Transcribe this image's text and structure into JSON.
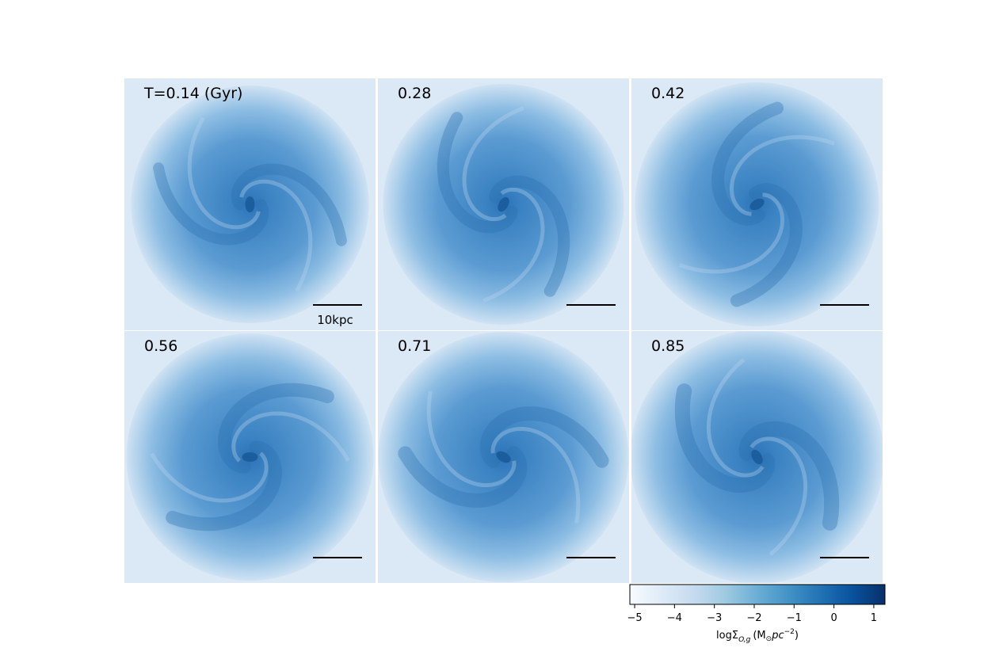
{
  "panels": [
    {
      "label": "T=0.14 (Gyr)"
    },
    {
      "label": "0.28"
    },
    {
      "label": "0.42"
    },
    {
      "label": "0.56"
    },
    {
      "label": "0.71"
    },
    {
      "label": "0.85"
    }
  ],
  "scale_bar_label": "10kpc",
  "colorbar": {
    "lim": [
      -5.12,
      1.28
    ],
    "ticks": [
      {
        "value": -5,
        "label": "−5"
      },
      {
        "value": -4,
        "label": "−4"
      },
      {
        "value": -3,
        "label": "−3"
      },
      {
        "value": -2,
        "label": "−2"
      },
      {
        "value": -1,
        "label": "−1"
      },
      0,
      1
    ],
    "label": {
      "main": "logΣ",
      "sub": "O,g",
      "unit": "(M",
      "sun": "⊙",
      "per": "pc",
      "sup": "−2",
      "close": ")"
    }
  }
}
